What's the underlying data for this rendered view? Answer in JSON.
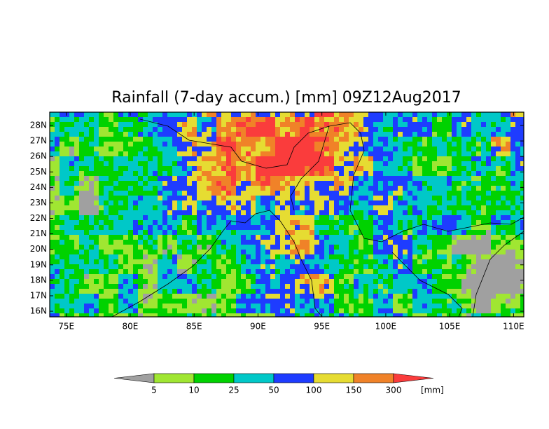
{
  "map": {
    "title": "Rainfall (7-day accum.) [mm] 09Z12Aug2017",
    "lonlim": [
      73.7,
      110.8
    ],
    "latlim": [
      15.64,
      28.86
    ],
    "xticks": [
      {
        "value": 75,
        "label": "75E"
      },
      {
        "value": 80,
        "label": "80E"
      },
      {
        "value": 85,
        "label": "85E"
      },
      {
        "value": 90,
        "label": "90E"
      },
      {
        "value": 95,
        "label": "95E"
      },
      {
        "value": 100,
        "label": "100E"
      },
      {
        "value": 105,
        "label": "105E"
      },
      {
        "value": 110,
        "label": "110E"
      }
    ],
    "yticks": [
      {
        "value": 16,
        "label": "16N"
      },
      {
        "value": 17,
        "label": "17N"
      },
      {
        "value": 18,
        "label": "18N"
      },
      {
        "value": 19,
        "label": "19N"
      },
      {
        "value": 20,
        "label": "20N"
      },
      {
        "value": 21,
        "label": "21N"
      },
      {
        "value": 22,
        "label": "22N"
      },
      {
        "value": 23,
        "label": "23N"
      },
      {
        "value": 24,
        "label": "24N"
      },
      {
        "value": 25,
        "label": "25N"
      },
      {
        "value": 26,
        "label": "26N"
      },
      {
        "value": 27,
        "label": "27N"
      },
      {
        "value": 28,
        "label": "28N"
      }
    ],
    "colorbar": {
      "levels": [
        5,
        10,
        25,
        50,
        100,
        150,
        300
      ],
      "colors": [
        "#a0a0a0",
        "#a0e632",
        "#00d200",
        "#00c8c8",
        "#1e3cff",
        "#e6dc32",
        "#f08228",
        "#fa3c3c"
      ],
      "unit": "[mm]"
    }
  }
}
